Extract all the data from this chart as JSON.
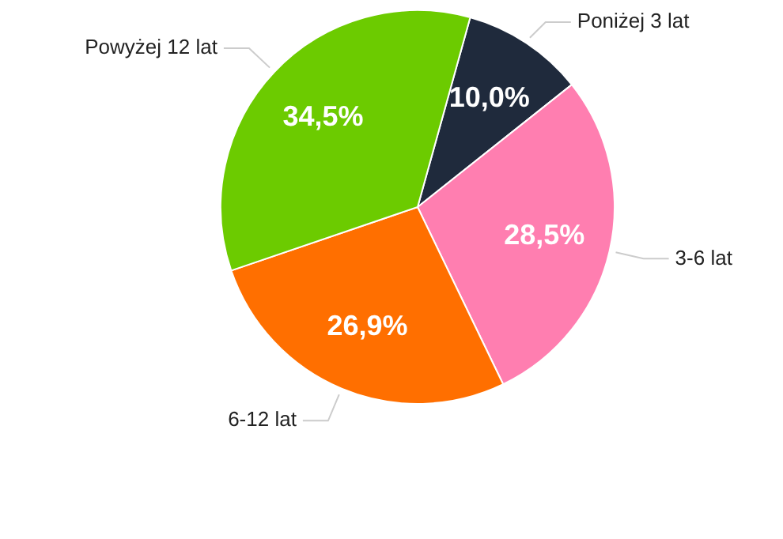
{
  "chart_data": {
    "type": "pie",
    "categories": [
      "Poniżej 3 lat",
      "3-6 lat",
      "6-12 lat",
      "Powyżej 12 lat"
    ],
    "values": [
      10.0,
      28.5,
      26.9,
      34.5
    ],
    "colors": [
      "#1f2a3c",
      "#ff7eb0",
      "#ff6f00",
      "#6ccb00"
    ],
    "value_labels": [
      "10,0%",
      "28,5%",
      "26,9%",
      "34,5%"
    ],
    "legend": false
  }
}
